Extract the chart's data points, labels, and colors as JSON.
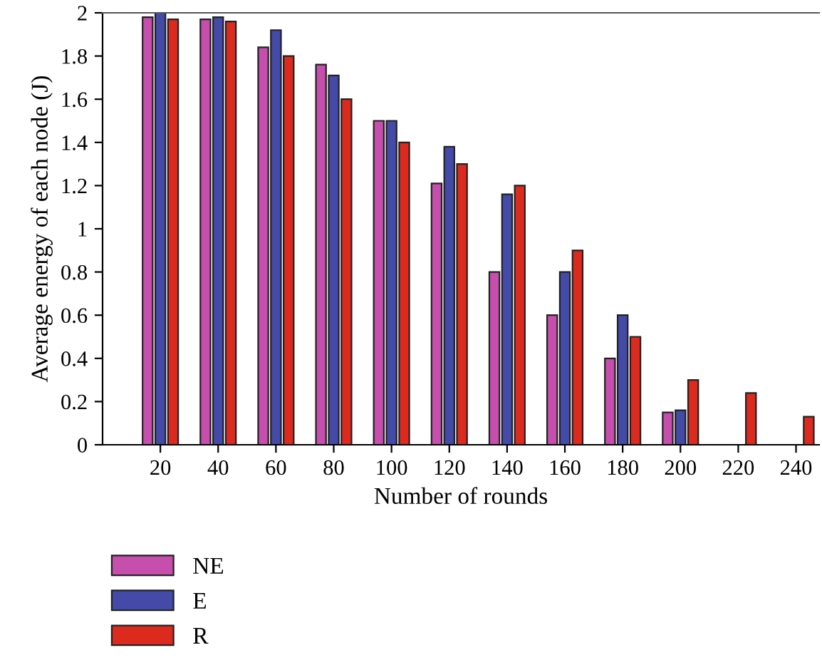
{
  "chart_data": {
    "type": "bar",
    "xlabel": "Number of rounds",
    "ylabel": "Average energy of each node (J)",
    "x": [
      20,
      40,
      60,
      80,
      100,
      120,
      140,
      160,
      180,
      200,
      220,
      240
    ],
    "series": [
      {
        "name": "NE",
        "color": "#c64fae",
        "values": [
          1.98,
          1.97,
          1.84,
          1.76,
          1.5,
          1.21,
          0.8,
          0.6,
          0.4,
          0.15,
          null,
          null
        ]
      },
      {
        "name": "E",
        "color": "#434aa8",
        "values": [
          2.0,
          1.98,
          1.92,
          1.71,
          1.5,
          1.38,
          1.16,
          0.8,
          0.6,
          0.16,
          null,
          null
        ]
      },
      {
        "name": "R",
        "color": "#dd2a1e",
        "values": [
          1.97,
          1.96,
          1.8,
          1.6,
          1.4,
          1.3,
          1.2,
          0.9,
          0.5,
          0.3,
          0.24,
          0.13
        ]
      }
    ],
    "xlim": [
      0,
      248
    ],
    "xticks": [
      20,
      40,
      60,
      80,
      100,
      120,
      140,
      160,
      180,
      200,
      220,
      240
    ],
    "ylim": [
      0,
      2
    ],
    "yticks": [
      0,
      0.2,
      0.4,
      0.6,
      0.8,
      1,
      1.2,
      1.4,
      1.6,
      1.8,
      2
    ],
    "grid": false,
    "legend": "bottom left"
  }
}
